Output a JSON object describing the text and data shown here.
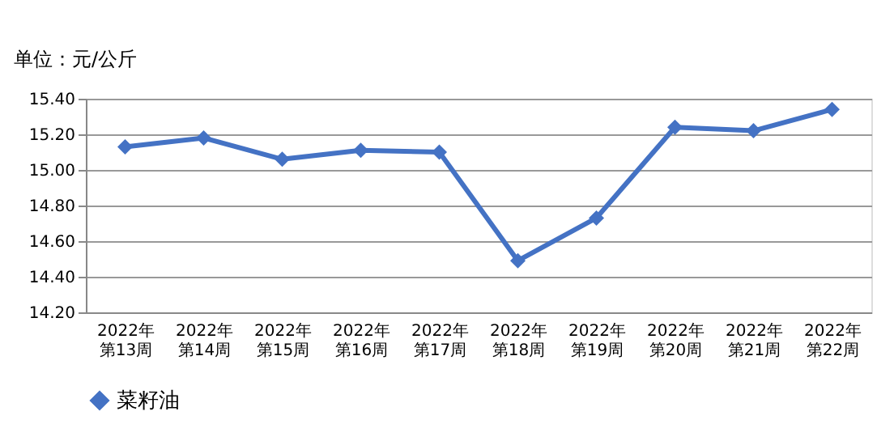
{
  "chart_data": {
    "type": "line",
    "ylabel": "单位：元/公斤",
    "categories": [
      "2022年第13周",
      "2022年第14周",
      "2022年第15周",
      "2022年第16周",
      "2022年第17周",
      "2022年第18周",
      "2022年第19周",
      "2022年第20周",
      "2022年第21周",
      "2022年第22周"
    ],
    "series": [
      {
        "name": "菜籽油",
        "color": "#4472c4",
        "values": [
          15.13,
          15.18,
          15.06,
          15.11,
          15.1,
          14.49,
          14.73,
          15.24,
          15.22,
          15.34
        ]
      }
    ],
    "ylim": [
      14.2,
      15.4
    ],
    "yticks": [
      {
        "value": 14.2,
        "label": "14.20"
      },
      {
        "value": 14.4,
        "label": "14.40"
      },
      {
        "value": 14.6,
        "label": "14.60"
      },
      {
        "value": 14.8,
        "label": "14.80"
      },
      {
        "value": 15.0,
        "label": "15.00"
      },
      {
        "value": 15.2,
        "label": "15.20"
      },
      {
        "value": 15.4,
        "label": "15.40"
      }
    ],
    "grid": "y",
    "legend": "bottom",
    "marker": "diamond",
    "line_style": "solid"
  }
}
